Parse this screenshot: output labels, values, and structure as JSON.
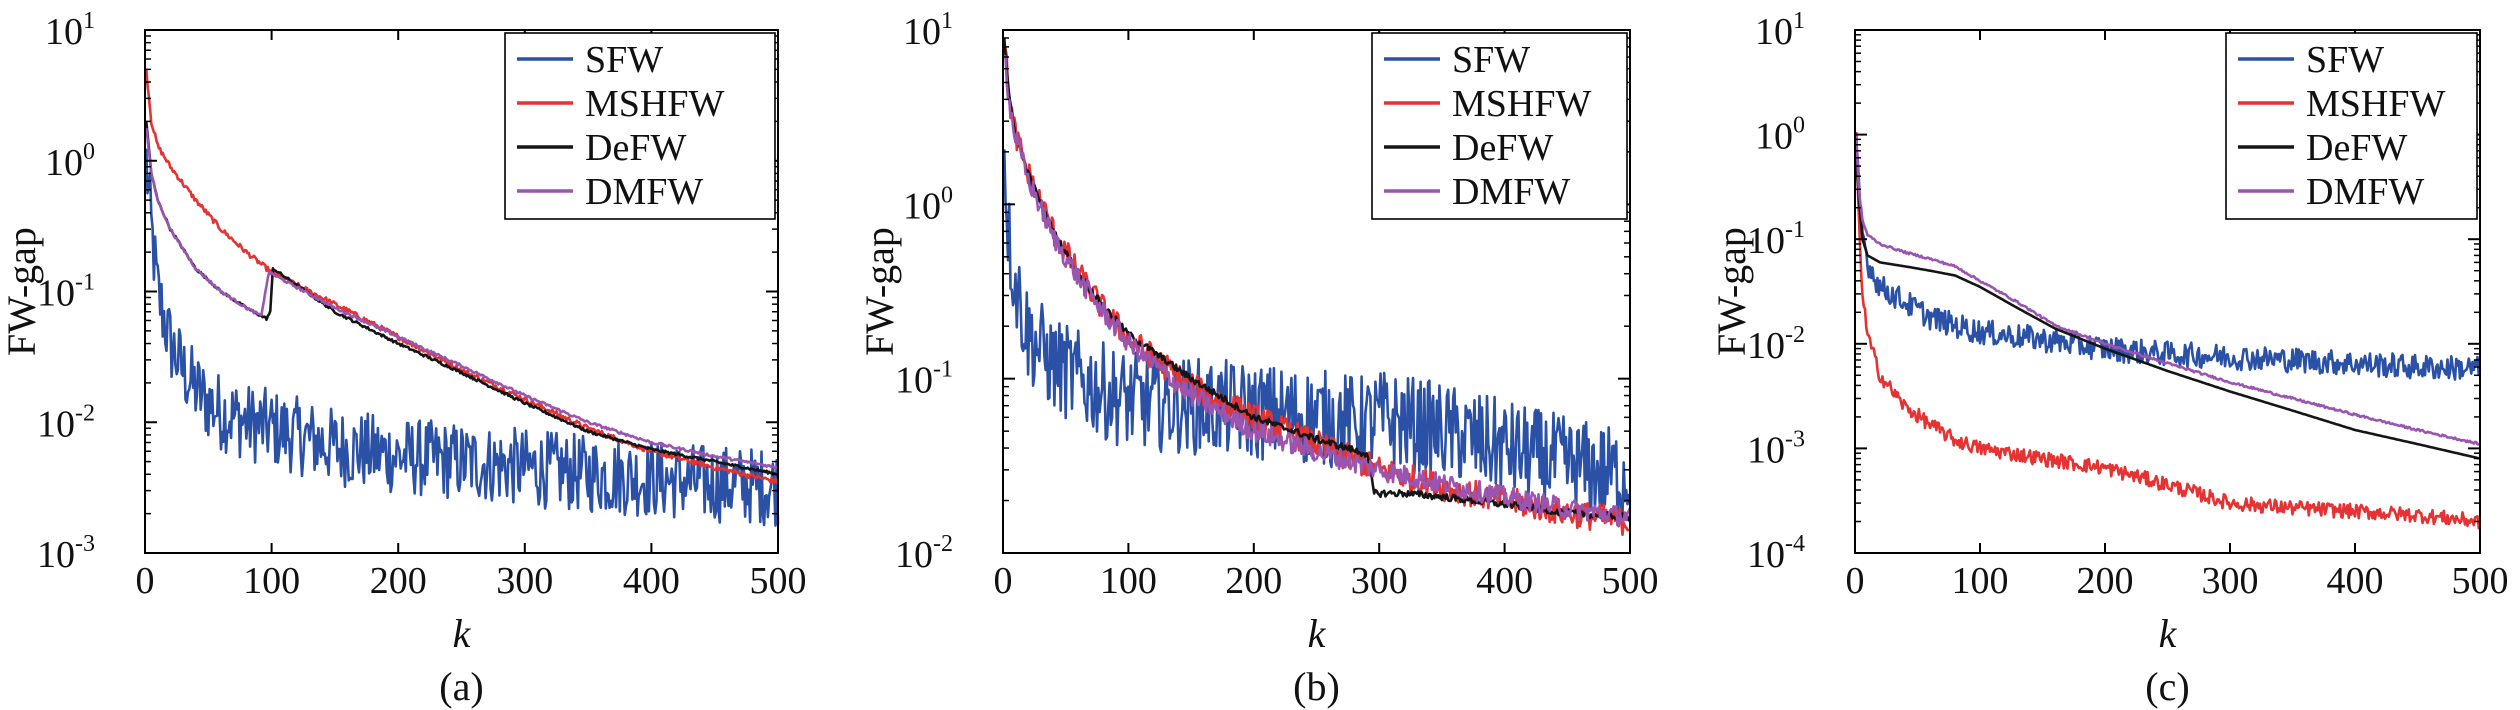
{
  "colors": {
    "SFW": "#2a51a6",
    "MSHFW": "#e53232",
    "DeFW": "#151515",
    "DMFW": "#9a55b0"
  },
  "chart_data": [
    {
      "type": "line",
      "caption": "(a)",
      "xlabel": "k",
      "ylabel": "FW-gap",
      "xlim": [
        0,
        500
      ],
      "ylim": [
        0.001,
        10
      ],
      "yscale": "log",
      "xticks": [
        0,
        100,
        200,
        300,
        400,
        500
      ],
      "yticks": [
        {
          "base": "10",
          "exp": "1"
        },
        {
          "base": "10",
          "exp": "0"
        },
        {
          "base": "10",
          "exp": "-1"
        },
        {
          "base": "10",
          "exp": "-2"
        },
        {
          "base": "10",
          "exp": "-3"
        }
      ],
      "legend_position": "top-right",
      "legend": [
        "SFW",
        "MSHFW",
        "DeFW",
        "DMFW"
      ],
      "series": [
        {
          "name": "SFW",
          "noise": 0.3,
          "x": [
            1,
            5,
            10,
            20,
            30,
            40,
            50,
            60,
            70,
            80,
            100,
            150,
            200,
            250,
            300,
            350,
            400,
            450,
            500
          ],
          "y": [
            1.0,
            0.3,
            0.1,
            0.04,
            0.025,
            0.018,
            0.014,
            0.012,
            0.011,
            0.01,
            0.009,
            0.0065,
            0.0055,
            0.005,
            0.0045,
            0.004,
            0.0037,
            0.0034,
            0.0032
          ]
        },
        {
          "name": "MSHFW",
          "noise": 0.02,
          "x": [
            1,
            5,
            10,
            20,
            40,
            60,
            80,
            100,
            150,
            200,
            250,
            300,
            350,
            400,
            450,
            500
          ],
          "y": [
            5.0,
            2.0,
            1.3,
            0.9,
            0.5,
            0.3,
            0.2,
            0.14,
            0.08,
            0.045,
            0.025,
            0.015,
            0.009,
            0.006,
            0.0045,
            0.0035
          ]
        },
        {
          "name": "DeFW",
          "noise": 0.01,
          "x": [
            1,
            5,
            10,
            20,
            40,
            60,
            80,
            96,
            99,
            101,
            150,
            200,
            250,
            300,
            350,
            400,
            450,
            500
          ],
          "y": [
            2.0,
            0.8,
            0.5,
            0.3,
            0.15,
            0.1,
            0.075,
            0.062,
            0.07,
            0.15,
            0.07,
            0.04,
            0.024,
            0.014,
            0.0085,
            0.0062,
            0.005,
            0.004
          ]
        },
        {
          "name": "DMFW",
          "noise": 0.01,
          "x": [
            1,
            5,
            10,
            20,
            40,
            60,
            80,
            92,
            95,
            98,
            150,
            200,
            250,
            300,
            350,
            400,
            450,
            500
          ],
          "y": [
            1.8,
            0.8,
            0.5,
            0.3,
            0.15,
            0.1,
            0.075,
            0.065,
            0.1,
            0.14,
            0.075,
            0.045,
            0.027,
            0.016,
            0.01,
            0.007,
            0.0055,
            0.0045
          ]
        }
      ]
    },
    {
      "type": "line",
      "caption": "(b)",
      "xlabel": "k",
      "ylabel": "FW-gap",
      "xlim": [
        0,
        500
      ],
      "ylim": [
        0.01,
        10
      ],
      "yscale": "log",
      "xticks": [
        0,
        100,
        200,
        300,
        400,
        500
      ],
      "yticks": [
        {
          "base": "10",
          "exp": "1"
        },
        {
          "base": "10",
          "exp": "0"
        },
        {
          "base": "10",
          "exp": "-1"
        },
        {
          "base": "10",
          "exp": "-2"
        }
      ],
      "legend_position": "top-right",
      "legend": [
        "SFW",
        "MSHFW",
        "DeFW",
        "DMFW"
      ],
      "series": [
        {
          "name": "SFW",
          "noise": 0.28,
          "x": [
            1,
            5,
            10,
            20,
            40,
            60,
            80,
            100,
            150,
            200,
            250,
            290,
            300,
            350,
            400,
            450,
            500
          ],
          "y": [
            2.0,
            0.6,
            0.35,
            0.18,
            0.12,
            0.1,
            0.085,
            0.075,
            0.07,
            0.065,
            0.06,
            0.055,
            0.06,
            0.05,
            0.04,
            0.032,
            0.027
          ]
        },
        {
          "name": "MSHFW",
          "noise": 0.08,
          "x": [
            1,
            5,
            10,
            20,
            40,
            60,
            80,
            100,
            150,
            200,
            250,
            300,
            350,
            400,
            450,
            500
          ],
          "y": [
            9.0,
            4.0,
            2.5,
            1.5,
            0.7,
            0.4,
            0.25,
            0.17,
            0.09,
            0.06,
            0.042,
            0.03,
            0.024,
            0.02,
            0.017,
            0.015
          ]
        },
        {
          "name": "DeFW",
          "noise": 0.02,
          "x": [
            1,
            5,
            10,
            20,
            40,
            60,
            80,
            100,
            150,
            200,
            250,
            290,
            296,
            320,
            350,
            400,
            450,
            500
          ],
          "y": [
            9.0,
            4.0,
            2.5,
            1.5,
            0.7,
            0.4,
            0.26,
            0.18,
            0.1,
            0.06,
            0.045,
            0.037,
            0.022,
            0.022,
            0.021,
            0.019,
            0.017,
            0.016
          ]
        },
        {
          "name": "DMFW",
          "noise": 0.06,
          "x": [
            1,
            5,
            10,
            20,
            40,
            60,
            80,
            100,
            150,
            200,
            250,
            300,
            350,
            400,
            450,
            500
          ],
          "y": [
            8.0,
            3.8,
            2.4,
            1.4,
            0.65,
            0.38,
            0.24,
            0.16,
            0.08,
            0.05,
            0.038,
            0.03,
            0.025,
            0.021,
            0.018,
            0.016
          ]
        }
      ]
    },
    {
      "type": "line",
      "caption": "(c)",
      "xlabel": "k",
      "ylabel": "FW-gap",
      "xlim": [
        0,
        500
      ],
      "ylim": [
        0.0001,
        10
      ],
      "yscale": "log",
      "xticks": [
        0,
        100,
        200,
        300,
        400,
        500
      ],
      "yticks": [
        {
          "base": "10",
          "exp": "1"
        },
        {
          "base": "10",
          "exp": "0"
        },
        {
          "base": "10",
          "exp": "-1"
        },
        {
          "base": "10",
          "exp": "-2"
        },
        {
          "base": "10",
          "exp": "-3"
        },
        {
          "base": "10",
          "exp": "-4"
        }
      ],
      "legend_position": "top-right",
      "legend": [
        "SFW",
        "MSHFW",
        "DeFW",
        "DMFW"
      ],
      "series": [
        {
          "name": "SFW",
          "noise": 0.12,
          "x": [
            1,
            3,
            6,
            10,
            20,
            40,
            60,
            80,
            100,
            150,
            200,
            250,
            300,
            350,
            400,
            450,
            500
          ],
          "y": [
            0.8,
            0.3,
            0.12,
            0.06,
            0.035,
            0.025,
            0.018,
            0.015,
            0.013,
            0.011,
            0.009,
            0.008,
            0.0075,
            0.007,
            0.0065,
            0.006,
            0.0058
          ]
        },
        {
          "name": "MSHFW",
          "noise": 0.07,
          "x": [
            1,
            3,
            6,
            10,
            20,
            40,
            60,
            80,
            100,
            150,
            200,
            250,
            300,
            350,
            400,
            450,
            500
          ],
          "y": [
            1.0,
            0.15,
            0.03,
            0.012,
            0.005,
            0.0025,
            0.0017,
            0.0012,
            0.001,
            0.0008,
            0.00065,
            0.00045,
            0.0003,
            0.00027,
            0.00025,
            0.00023,
            0.0002
          ]
        },
        {
          "name": "DeFW",
          "noise": 0.0,
          "x": [
            1,
            3,
            6,
            10,
            20,
            40,
            60,
            80,
            100,
            130,
            160,
            200,
            250,
            300,
            350,
            400,
            450,
            500
          ],
          "y": [
            0.6,
            0.25,
            0.1,
            0.07,
            0.06,
            0.055,
            0.05,
            0.045,
            0.035,
            0.022,
            0.014,
            0.009,
            0.0055,
            0.0035,
            0.0023,
            0.0015,
            0.0011,
            0.0008
          ]
        },
        {
          "name": "DMFW",
          "noise": 0.01,
          "x": [
            1,
            3,
            6,
            10,
            20,
            40,
            60,
            80,
            100,
            130,
            160,
            200,
            250,
            300,
            350,
            400,
            450,
            500
          ],
          "y": [
            1.0,
            0.3,
            0.15,
            0.11,
            0.09,
            0.075,
            0.065,
            0.055,
            0.04,
            0.025,
            0.015,
            0.01,
            0.0065,
            0.0043,
            0.003,
            0.0021,
            0.0015,
            0.0011
          ]
        }
      ]
    }
  ]
}
